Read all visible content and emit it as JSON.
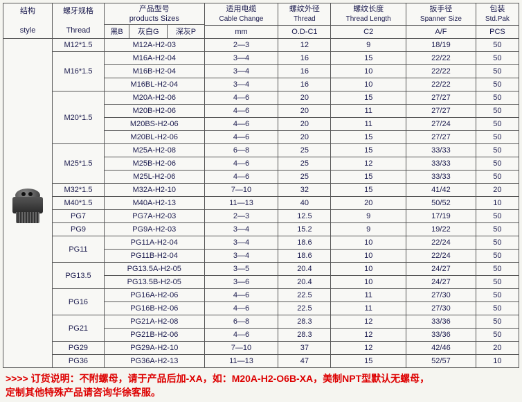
{
  "headers": {
    "style_cn": "结构",
    "style_en": "style",
    "thread_cn": "螺牙规格",
    "thread_en": "Thread",
    "sizes_cn": "产品型号",
    "sizes_en": "products Sizes",
    "black": "黑B",
    "gray": "灰白G",
    "darkgray": "深灰P",
    "cable_cn": "适用电缆",
    "cable_en": "Cable Change",
    "cable_u": "mm",
    "od_cn": "螺纹外径",
    "od_en": "Thread",
    "od_u": "O.D-C1",
    "len_cn": "螺纹长度",
    "len_en": "Thread Length",
    "len_u": "C2",
    "span_cn": "扳手径",
    "span_en": "Spanner Size",
    "span_u": "A/F",
    "pack_cn": "包装",
    "pack_en": "Std.Pak",
    "pack_u": "PCS"
  },
  "groups": [
    {
      "thread": "M12*1.5",
      "rows": [
        [
          "M12A-H2-03",
          "2—3",
          "12",
          "9",
          "18/19",
          "50"
        ]
      ]
    },
    {
      "thread": "M16*1.5",
      "rows": [
        [
          "M16A-H2-04",
          "3—4",
          "16",
          "15",
          "22/22",
          "50"
        ],
        [
          "M16B-H2-04",
          "3—4",
          "16",
          "10",
          "22/22",
          "50"
        ],
        [
          "M16BL-H2-04",
          "3—4",
          "16",
          "10",
          "22/22",
          "50"
        ]
      ]
    },
    {
      "thread": "M20*1.5",
      "rows": [
        [
          "M20A-H2-06",
          "4—6",
          "20",
          "15",
          "27/27",
          "50"
        ],
        [
          "M20B-H2-06",
          "4—6",
          "20",
          "11",
          "27/27",
          "50"
        ],
        [
          "M20BS-H2-06",
          "4—6",
          "20",
          "11",
          "27/24",
          "50"
        ],
        [
          "M20BL-H2-06",
          "4—6",
          "20",
          "15",
          "27/27",
          "50"
        ]
      ]
    },
    {
      "thread": "M25*1.5",
      "rows": [
        [
          "M25A-H2-08",
          "6—8",
          "25",
          "15",
          "33/33",
          "50"
        ],
        [
          "M25B-H2-06",
          "4—6",
          "25",
          "12",
          "33/33",
          "50"
        ],
        [
          "M25L-H2-06",
          "4—6",
          "25",
          "15",
          "33/33",
          "50"
        ]
      ]
    },
    {
      "thread": "M32*1.5",
      "rows": [
        [
          "M32A-H2-10",
          "7—10",
          "32",
          "15",
          "41/42",
          "20"
        ]
      ]
    },
    {
      "thread": "M40*1.5",
      "rows": [
        [
          "M40A-H2-13",
          "11—13",
          "40",
          "20",
          "50/52",
          "10"
        ]
      ]
    },
    {
      "thread": "PG7",
      "rows": [
        [
          "PG7A-H2-03",
          "2—3",
          "12.5",
          "9",
          "17/19",
          "50"
        ]
      ]
    },
    {
      "thread": "PG9",
      "rows": [
        [
          "PG9A-H2-03",
          "3—4",
          "15.2",
          "9",
          "19/22",
          "50"
        ]
      ]
    },
    {
      "thread": "PG11",
      "rows": [
        [
          "PG11A-H2-04",
          "3—4",
          "18.6",
          "10",
          "22/24",
          "50"
        ],
        [
          "PG11B-H2-04",
          "3—4",
          "18.6",
          "10",
          "22/24",
          "50"
        ]
      ]
    },
    {
      "thread": "PG13.5",
      "rows": [
        [
          "PG13.5A-H2-05",
          "3—5",
          "20.4",
          "10",
          "24/27",
          "50"
        ],
        [
          "PG13.5B-H2-05",
          "3—6",
          "20.4",
          "10",
          "24/27",
          "50"
        ]
      ]
    },
    {
      "thread": "PG16",
      "rows": [
        [
          "PG16A-H2-06",
          "4—6",
          "22.5",
          "11",
          "27/30",
          "50"
        ],
        [
          "PG16B-H2-06",
          "4—6",
          "22.5",
          "11",
          "27/30",
          "50"
        ]
      ]
    },
    {
      "thread": "PG21",
      "rows": [
        [
          "PG21A-H2-08",
          "6—8",
          "28.3",
          "12",
          "33/36",
          "50"
        ],
        [
          "PG21B-H2-06",
          "4—6",
          "28.3",
          "12",
          "33/36",
          "50"
        ]
      ]
    },
    {
      "thread": "PG29",
      "rows": [
        [
          "PG29A-H2-10",
          "7—10",
          "37",
          "12",
          "42/46",
          "20"
        ]
      ]
    },
    {
      "thread": "PG36",
      "rows": [
        [
          "PG36A-H2-13",
          "11—13",
          "47",
          "15",
          "52/57",
          "10"
        ]
      ]
    }
  ],
  "footer_l1": ">>>> 订货说明：不附螺母，请于产品后加-XA，如：M20A-H2-O6B-XA，美制NPT型默认无螺母，",
  "footer_l2": "定制其他特殊产品请咨询华徐客服。"
}
